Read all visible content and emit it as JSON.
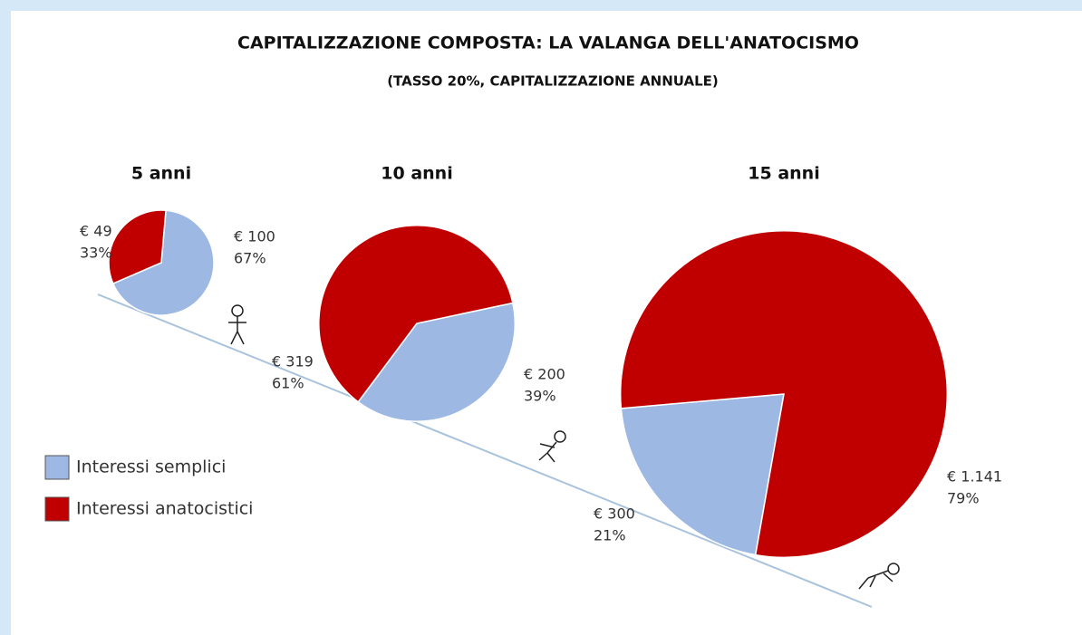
{
  "title": "CAPITALIZZAZIONE COMPOSTA: LA VALANGA DELL'ANATOCISMO",
  "subtitle": "(TASSO 20%, CAPITALIZZAZIONE ANNUALE)",
  "legend": [
    "Interessi semplici",
    "Interessi anatocistici"
  ],
  "colors": [
    "#9db8e2",
    "#c00000"
  ],
  "chart_data": [
    {
      "type": "pie",
      "title": "5 anni",
      "values": [
        100,
        49
      ],
      "value_labels": [
        "€ 100",
        "€ 49"
      ],
      "percent_labels": [
        "67%",
        "33%"
      ]
    },
    {
      "type": "pie",
      "title": "10 anni",
      "values": [
        200,
        319
      ],
      "value_labels": [
        "€ 200",
        "€ 319"
      ],
      "percent_labels": [
        "39%",
        "61%"
      ]
    },
    {
      "type": "pie",
      "title": "15 anni",
      "values": [
        300,
        1141
      ],
      "value_labels": [
        "€ 300",
        "€ 1.141"
      ],
      "percent_labels": [
        "21%",
        "79%"
      ]
    }
  ]
}
